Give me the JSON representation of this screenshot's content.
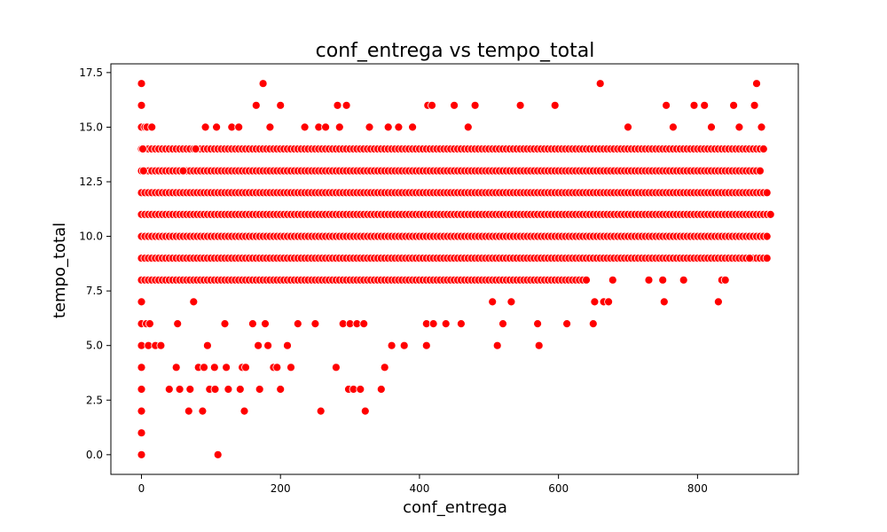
{
  "chart_data": {
    "type": "scatter",
    "title": "conf_entrega vs tempo_total",
    "xlabel": "conf_entrega",
    "ylabel": "tempo_total",
    "xlim": [
      -44,
      945
    ],
    "ylim": [
      -0.9,
      17.9
    ],
    "x_ticks": [
      0,
      200,
      400,
      600,
      800
    ],
    "y_ticks": [
      0.0,
      2.5,
      5.0,
      7.5,
      10.0,
      12.5,
      15.0,
      17.5
    ],
    "y_tick_labels": [
      "0.0",
      "2.5",
      "5.0",
      "7.5",
      "10.0",
      "12.5",
      "15.0",
      "17.5"
    ],
    "grid": false,
    "point_color": "#ff0000",
    "point_edge_color": "#ffffff",
    "dense_bands": [
      {
        "y": 8,
        "x": [
          0,
          640
        ]
      },
      {
        "y": 9,
        "x": [
          0,
          900
        ]
      },
      {
        "y": 10,
        "x": [
          0,
          900
        ]
      },
      {
        "y": 11,
        "x": [
          0,
          905
        ]
      },
      {
        "y": 12,
        "x": [
          0,
          900
        ]
      },
      {
        "y": 13,
        "x": [
          0,
          890
        ]
      },
      {
        "y": 14,
        "x": [
          0,
          895
        ]
      }
    ],
    "points": [
      [
        0,
        0
      ],
      [
        0,
        1
      ],
      [
        0,
        2
      ],
      [
        0,
        3
      ],
      [
        0,
        4
      ],
      [
        0,
        5
      ],
      [
        0,
        6
      ],
      [
        0,
        7
      ],
      [
        0,
        15
      ],
      [
        0,
        16
      ],
      [
        0,
        17
      ],
      [
        2,
        14
      ],
      [
        3,
        13
      ],
      [
        5,
        15
      ],
      [
        7,
        6
      ],
      [
        8,
        15
      ],
      [
        10,
        5
      ],
      [
        12,
        6
      ],
      [
        15,
        15
      ],
      [
        20,
        5
      ],
      [
        28,
        5
      ],
      [
        40,
        3
      ],
      [
        50,
        4
      ],
      [
        52,
        6
      ],
      [
        55,
        3
      ],
      [
        60,
        13
      ],
      [
        68,
        2
      ],
      [
        70,
        3
      ],
      [
        75,
        7
      ],
      [
        78,
        14
      ],
      [
        82,
        4
      ],
      [
        88,
        2
      ],
      [
        90,
        4
      ],
      [
        92,
        15
      ],
      [
        95,
        5
      ],
      [
        98,
        3
      ],
      [
        105,
        4
      ],
      [
        106,
        3
      ],
      [
        108,
        15
      ],
      [
        110,
        0
      ],
      [
        120,
        6
      ],
      [
        122,
        4
      ],
      [
        125,
        3
      ],
      [
        130,
        15
      ],
      [
        140,
        15
      ],
      [
        142,
        3
      ],
      [
        145,
        4
      ],
      [
        148,
        2
      ],
      [
        150,
        4
      ],
      [
        160,
        6
      ],
      [
        165,
        16
      ],
      [
        168,
        5
      ],
      [
        170,
        3
      ],
      [
        175,
        17
      ],
      [
        178,
        6
      ],
      [
        182,
        5
      ],
      [
        185,
        15
      ],
      [
        190,
        4
      ],
      [
        195,
        4
      ],
      [
        200,
        3
      ],
      [
        200,
        16
      ],
      [
        210,
        5
      ],
      [
        215,
        4
      ],
      [
        225,
        6
      ],
      [
        235,
        15
      ],
      [
        250,
        6
      ],
      [
        255,
        15
      ],
      [
        258,
        2
      ],
      [
        265,
        15
      ],
      [
        280,
        4
      ],
      [
        282,
        16
      ],
      [
        285,
        15
      ],
      [
        290,
        6
      ],
      [
        295,
        16
      ],
      [
        298,
        3
      ],
      [
        300,
        6
      ],
      [
        305,
        3
      ],
      [
        310,
        6
      ],
      [
        315,
        3
      ],
      [
        320,
        6
      ],
      [
        322,
        2
      ],
      [
        328,
        15
      ],
      [
        345,
        3
      ],
      [
        350,
        4
      ],
      [
        355,
        15
      ],
      [
        360,
        5
      ],
      [
        370,
        15
      ],
      [
        378,
        5
      ],
      [
        390,
        15
      ],
      [
        410,
        6
      ],
      [
        410,
        5
      ],
      [
        412,
        16
      ],
      [
        418,
        16
      ],
      [
        420,
        6
      ],
      [
        438,
        6
      ],
      [
        450,
        16
      ],
      [
        460,
        6
      ],
      [
        470,
        15
      ],
      [
        480,
        16
      ],
      [
        505,
        7
      ],
      [
        512,
        5
      ],
      [
        520,
        6
      ],
      [
        532,
        7
      ],
      [
        545,
        16
      ],
      [
        570,
        6
      ],
      [
        572,
        5
      ],
      [
        595,
        16
      ],
      [
        612,
        6
      ],
      [
        650,
        6
      ],
      [
        652,
        7
      ],
      [
        660,
        17
      ],
      [
        665,
        7
      ],
      [
        672,
        7
      ],
      [
        678,
        8
      ],
      [
        700,
        15
      ],
      [
        730,
        8
      ],
      [
        750,
        8
      ],
      [
        752,
        7
      ],
      [
        755,
        16
      ],
      [
        765,
        15
      ],
      [
        780,
        8
      ],
      [
        795,
        16
      ],
      [
        810,
        16
      ],
      [
        820,
        15
      ],
      [
        830,
        7
      ],
      [
        835,
        8
      ],
      [
        840,
        8
      ],
      [
        852,
        16
      ],
      [
        860,
        15
      ],
      [
        875,
        9
      ],
      [
        882,
        16
      ],
      [
        885,
        17
      ],
      [
        892,
        15
      ],
      [
        905,
        11
      ]
    ]
  }
}
